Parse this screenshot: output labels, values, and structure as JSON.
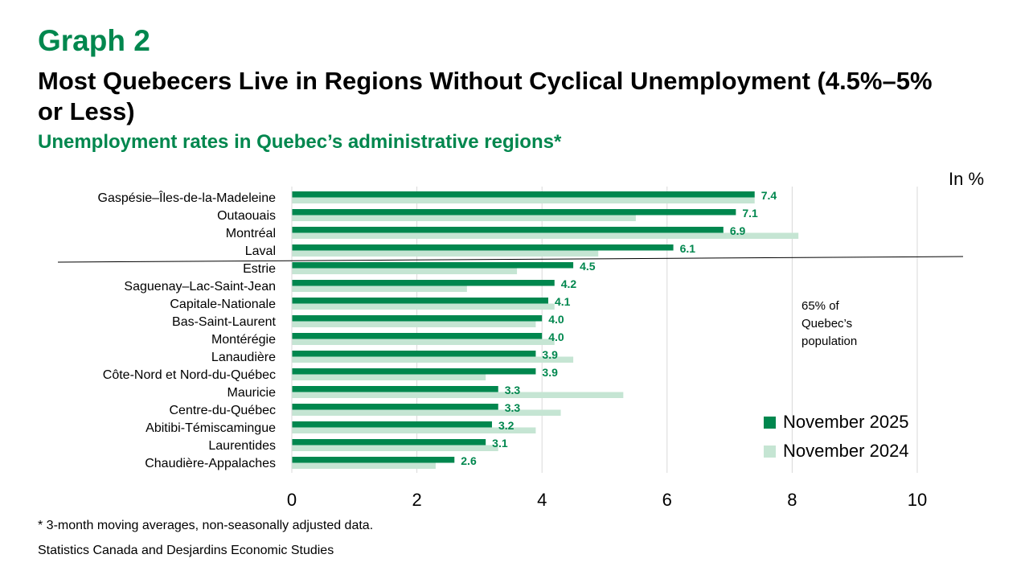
{
  "header": {
    "graph_label": "Graph 2",
    "title": "Most Quebecers Live in Regions Without Cyclical Unemployment (4.5%–5% or Less)",
    "subtitle": "Unemployment rates in Quebec’s administrative regions*"
  },
  "unit_label": "In %",
  "annotation": "65% of Quebec’s population",
  "footnote": "* 3-month moving averages, non-seasonally adjusted data.",
  "source": "Statistics Canada and Desjardins Economic Studies",
  "colors": {
    "series_2025": "#00874E",
    "series_2024": "#C5E5D3",
    "accent": "#00874E",
    "gridline": "#D9D9D9"
  },
  "legend": [
    {
      "label": "November 2025",
      "color": "#00874E"
    },
    {
      "label": "November 2024",
      "color": "#C5E5D3"
    }
  ],
  "chart_data": {
    "type": "bar",
    "orientation": "horizontal",
    "categories": [
      "Gaspésie–Îles-de-la-Madeleine",
      "Outaouais",
      "Montréal",
      "Laval",
      "Estrie",
      "Saguenay–Lac-Saint-Jean",
      "Capitale-Nationale",
      "Bas-Saint-Laurent",
      "Montérégie",
      "Lanaudière",
      "Côte-Nord et Nord-du-Québec",
      "Mauricie",
      "Centre-du-Québec",
      "Abitibi-Témiscamingue",
      "Laurentides",
      "Chaudière-Appalaches"
    ],
    "series": [
      {
        "name": "November 2025",
        "values": [
          7.4,
          7.1,
          6.9,
          6.1,
          4.5,
          4.2,
          4.1,
          4.0,
          4.0,
          3.9,
          3.9,
          3.3,
          3.3,
          3.2,
          3.1,
          2.6
        ],
        "labels": [
          "7.4",
          "7.1",
          "6.9",
          "6.1",
          "4.5",
          "4.2",
          "4.1",
          "4.0",
          "4.0",
          "3.9",
          "3.9",
          "3.3",
          "3.3",
          "3.2",
          "3.1",
          "2.6"
        ]
      },
      {
        "name": "November 2024",
        "values": [
          7.4,
          5.5,
          8.1,
          4.9,
          3.6,
          2.8,
          4.2,
          3.9,
          4.2,
          4.5,
          3.1,
          5.3,
          4.3,
          3.9,
          3.3,
          2.3
        ]
      }
    ],
    "xlim": [
      0,
      10
    ],
    "xticks": [
      "0",
      "2",
      "4",
      "6",
      "8",
      "10"
    ],
    "grid": true,
    "legend_position": "bottom-right",
    "title": "Unemployment rates in Quebec’s administrative regions*"
  }
}
